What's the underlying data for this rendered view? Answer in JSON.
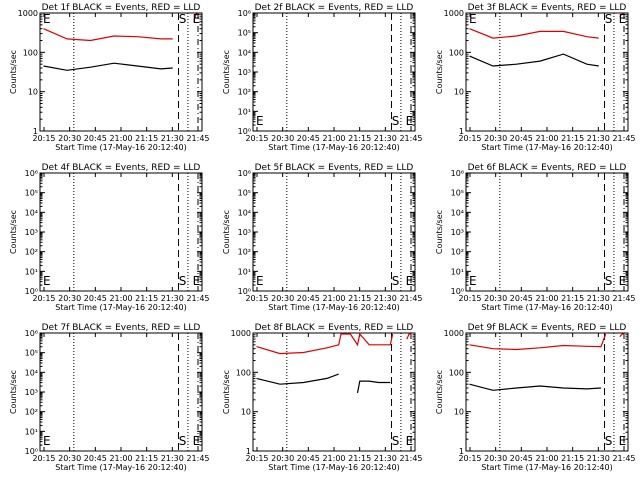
{
  "chart_data": [
    {
      "type": "line",
      "title": "Det 1f BLACK = Events, RED = LLD",
      "xlabel": "Start Time (17-May-16 20:12:40)",
      "ylabel": "Counts/sec",
      "yscale": "log",
      "ylim": [
        1,
        1000
      ],
      "ytick_labels": [
        "1",
        "10",
        "100",
        "1000"
      ],
      "xtick_labels": [
        "20:15",
        "20:30",
        "20:45",
        "21:00",
        "21:15",
        "21:30",
        "21:45"
      ],
      "x_minutes": [
        0,
        10,
        20,
        30,
        40,
        50,
        55,
        58,
        60,
        62,
        63,
        64,
        65,
        66
      ],
      "markers": [
        {
          "text": "E",
          "x": 0
        },
        {
          "text": "S",
          "x": 57.6
        },
        {
          "text": "E",
          "x": 63.5
        }
      ],
      "dashed_lines_x": [
        57.5,
        65.8
      ],
      "dotted_lines_x": [
        12.9,
        61.5
      ],
      "series": [
        {
          "name": "Events",
          "color": "#000000",
          "values": [
            45,
            35,
            42,
            53,
            45,
            38,
            40,
            null,
            null,
            null,
            null,
            null,
            null,
            null
          ]
        },
        {
          "name": "LLD",
          "color": "#e00000",
          "values": [
            400,
            220,
            200,
            260,
            250,
            220,
            220,
            null,
            null,
            null,
            null,
            600,
            1000,
            1000
          ]
        }
      ],
      "grid": false,
      "legend": "none"
    },
    {
      "type": "line",
      "title": "Det 2f BLACK = Events, RED = LLD",
      "xlabel": "Start Time (17-May-16 20:12:40)",
      "ylabel": "Counts/sec",
      "yscale": "log",
      "ylim": [
        1,
        1000000
      ],
      "ytick_labels": [
        "10⁰",
        "10¹",
        "10²",
        "10³",
        "10⁴",
        "10⁵",
        "10⁶"
      ],
      "xtick_labels": [
        "20:15",
        "20:30",
        "20:45",
        "21:00",
        "21:15",
        "21:30",
        "21:45"
      ],
      "markers": [
        {
          "text": "E",
          "x": 0
        },
        {
          "text": "S",
          "x": 57.6
        },
        {
          "text": "E",
          "x": 63.5
        }
      ],
      "dashed_lines_x": [
        57.5,
        65.8
      ],
      "dotted_lines_x": [
        12.9,
        61.5
      ],
      "series": [],
      "grid": false,
      "legend": "none"
    },
    {
      "type": "line",
      "title": "Det 3f BLACK = Events, RED = LLD",
      "xlabel": "Start Time (17-May-16 20:12:40)",
      "ylabel": "Counts/sec",
      "yscale": "log",
      "ylim": [
        1,
        1000
      ],
      "ytick_labels": [
        "1",
        "10",
        "100",
        "1000"
      ],
      "xtick_labels": [
        "20:15",
        "20:30",
        "20:45",
        "21:00",
        "21:15",
        "21:30",
        "21:45"
      ],
      "x_minutes": [
        0,
        10,
        20,
        30,
        40,
        50,
        55,
        58,
        60,
        62,
        63,
        64,
        65,
        66
      ],
      "markers": [
        {
          "text": "E",
          "x": 0
        },
        {
          "text": "S",
          "x": 57.6
        },
        {
          "text": "E",
          "x": 63.5
        }
      ],
      "dashed_lines_x": [
        57.5,
        65.8
      ],
      "dotted_lines_x": [
        12.9,
        61.5
      ],
      "series": [
        {
          "name": "Events",
          "color": "#000000",
          "values": [
            80,
            45,
            50,
            60,
            90,
            50,
            45,
            null,
            null,
            null,
            null,
            null,
            null,
            null
          ]
        },
        {
          "name": "LLD",
          "color": "#e00000",
          "values": [
            400,
            230,
            260,
            340,
            340,
            250,
            230,
            null,
            null,
            null,
            null,
            800,
            1000,
            1000
          ]
        }
      ],
      "grid": false,
      "legend": "none"
    },
    {
      "type": "line",
      "title": "Det 4f BLACK = Events, RED = LLD",
      "xlabel": "Start Time (17-May-16 20:12:40)",
      "ylabel": "Counts/sec",
      "yscale": "log",
      "ylim": [
        1,
        1000000
      ],
      "ytick_labels": [
        "10⁰",
        "10¹",
        "10²",
        "10³",
        "10⁴",
        "10⁵",
        "10⁶"
      ],
      "xtick_labels": [
        "20:15",
        "20:30",
        "20:45",
        "21:00",
        "21:15",
        "21:30",
        "21:45"
      ],
      "markers": [
        {
          "text": "E",
          "x": 0
        },
        {
          "text": "S",
          "x": 57.6
        },
        {
          "text": "E",
          "x": 63.5
        }
      ],
      "dashed_lines_x": [
        57.5,
        65.8
      ],
      "dotted_lines_x": [
        12.9,
        61.5
      ],
      "series": [],
      "grid": false,
      "legend": "none"
    },
    {
      "type": "line",
      "title": "Det 5f BLACK = Events, RED = LLD",
      "xlabel": "Start Time (17-May-16 20:12:40)",
      "ylabel": "Counts/sec",
      "yscale": "log",
      "ylim": [
        1,
        1000000
      ],
      "ytick_labels": [
        "10⁰",
        "10¹",
        "10²",
        "10³",
        "10⁴",
        "10⁵",
        "10⁶"
      ],
      "xtick_labels": [
        "20:15",
        "20:30",
        "20:45",
        "21:00",
        "21:15",
        "21:30",
        "21:45"
      ],
      "markers": [
        {
          "text": "E",
          "x": 0
        },
        {
          "text": "S",
          "x": 57.6
        },
        {
          "text": "E",
          "x": 63.5
        }
      ],
      "dashed_lines_x": [
        57.5,
        65.8
      ],
      "dotted_lines_x": [
        12.9,
        61.5
      ],
      "series": [],
      "grid": false,
      "legend": "none"
    },
    {
      "type": "line",
      "title": "Det 6f BLACK = Events, RED = LLD",
      "xlabel": "Start Time (17-May-16 20:12:40)",
      "ylabel": "Counts/sec",
      "yscale": "log",
      "ylim": [
        1,
        1000000
      ],
      "ytick_labels": [
        "10⁰",
        "10¹",
        "10²",
        "10³",
        "10⁴",
        "10⁵",
        "10⁶"
      ],
      "xtick_labels": [
        "20:15",
        "20:30",
        "20:45",
        "21:00",
        "21:15",
        "21:30",
        "21:45"
      ],
      "markers": [
        {
          "text": "E",
          "x": 0
        },
        {
          "text": "S",
          "x": 57.6
        },
        {
          "text": "E",
          "x": 63.5
        }
      ],
      "dashed_lines_x": [
        57.5,
        65.8
      ],
      "dotted_lines_x": [
        12.9,
        61.5
      ],
      "series": [],
      "grid": false,
      "legend": "none"
    },
    {
      "type": "line",
      "title": "Det 7f BLACK = Events, RED = LLD",
      "xlabel": "Start Time (17-May-16 20:12:40)",
      "ylabel": "Counts/sec",
      "yscale": "log",
      "ylim": [
        1,
        1000000
      ],
      "ytick_labels": [
        "10⁰",
        "10¹",
        "10²",
        "10³",
        "10⁴",
        "10⁵",
        "10⁶"
      ],
      "xtick_labels": [
        "20:15",
        "20:30",
        "20:45",
        "21:00",
        "21:15",
        "21:30",
        "21:45"
      ],
      "markers": [
        {
          "text": "E",
          "x": 0
        },
        {
          "text": "S",
          "x": 57.6
        },
        {
          "text": "E",
          "x": 63.5
        }
      ],
      "dashed_lines_x": [
        57.5,
        65.8
      ],
      "dotted_lines_x": [
        12.9,
        61.5
      ],
      "series": [],
      "grid": false,
      "legend": "none"
    },
    {
      "type": "line",
      "title": "Det 8f BLACK = Events, RED = LLD",
      "xlabel": "Start Time (17-May-16 20:12:40)",
      "ylabel": "Counts/sec",
      "yscale": "log",
      "ylim": [
        1,
        1000
      ],
      "ytick_labels": [
        "1",
        "10",
        "100",
        "1000"
      ],
      "xtick_labels": [
        "20:15",
        "20:30",
        "20:45",
        "21:00",
        "21:15",
        "21:30",
        "21:45"
      ],
      "x_minutes": [
        0,
        10,
        20,
        30,
        35,
        36,
        40,
        43,
        44,
        48,
        52,
        57,
        58,
        62,
        64,
        65,
        66
      ],
      "markers": [
        {
          "text": "S",
          "x": 57.6
        },
        {
          "text": "E",
          "x": 63.5
        }
      ],
      "dashed_lines_x": [
        57.5,
        65.8
      ],
      "dotted_lines_x": [
        12.9,
        61.5
      ],
      "series": [
        {
          "name": "Events",
          "color": "#000000",
          "values": [
            70,
            50,
            55,
            70,
            90,
            null,
            null,
            30,
            60,
            60,
            55,
            55,
            null,
            null,
            null,
            null,
            null
          ]
        },
        {
          "name": "LLD",
          "color": "#e00000",
          "values": [
            450,
            300,
            320,
            420,
            500,
            1000,
            1000,
            500,
            1000,
            500,
            500,
            500,
            1000,
            null,
            700,
            1000,
            1000
          ]
        }
      ],
      "grid": false,
      "legend": "none"
    },
    {
      "type": "line",
      "title": "Det 9f BLACK = Events, RED = LLD",
      "xlabel": "Start Time (17-May-16 20:12:40)",
      "ylabel": "Counts/sec",
      "yscale": "log",
      "ylim": [
        1,
        1000
      ],
      "ytick_labels": [
        "1",
        "10",
        "100",
        "1000"
      ],
      "xtick_labels": [
        "20:15",
        "20:30",
        "20:45",
        "21:00",
        "21:15",
        "21:30",
        "21:45"
      ],
      "x_minutes": [
        0,
        10,
        20,
        30,
        40,
        50,
        56,
        58,
        62,
        64,
        65,
        66
      ],
      "markers": [
        {
          "text": "S",
          "x": 57.6
        },
        {
          "text": "E",
          "x": 63.5
        }
      ],
      "dashed_lines_x": [
        57.5,
        65.8
      ],
      "dotted_lines_x": [
        12.9,
        61.5
      ],
      "series": [
        {
          "name": "Events",
          "color": "#000000",
          "values": [
            50,
            35,
            40,
            45,
            40,
            38,
            40,
            null,
            null,
            null,
            null,
            null
          ]
        },
        {
          "name": "LLD",
          "color": "#e00000",
          "values": [
            500,
            400,
            380,
            420,
            480,
            460,
            450,
            1000,
            null,
            800,
            1000,
            1000
          ]
        }
      ],
      "grid": false,
      "legend": "none"
    }
  ]
}
